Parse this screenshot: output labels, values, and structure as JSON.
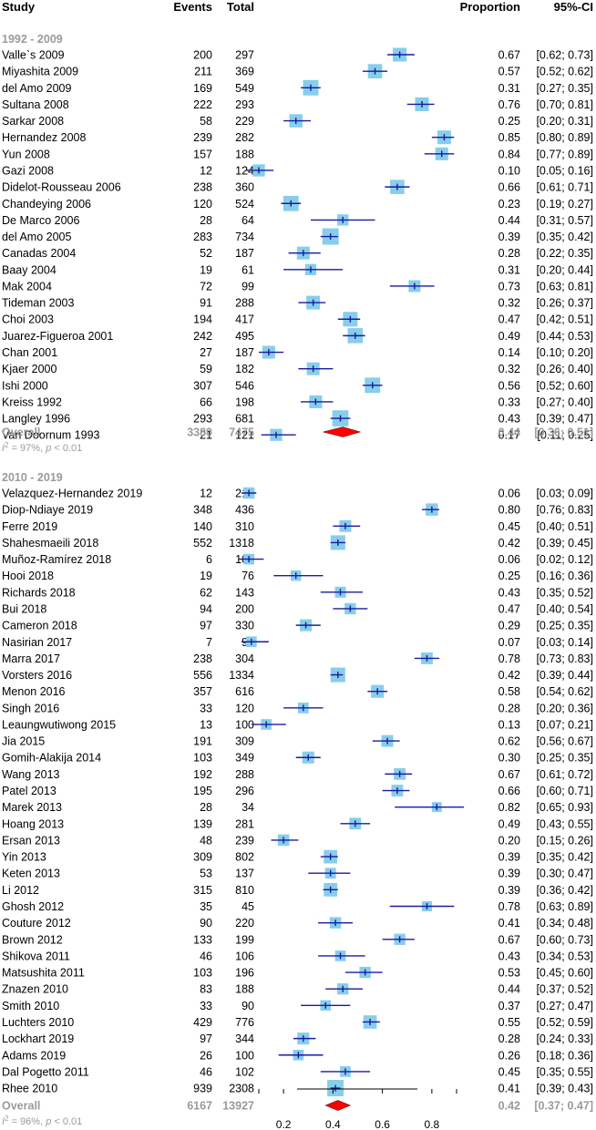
{
  "header": {
    "study": "Study",
    "events": "Events",
    "total": "Total",
    "proportion": "Proportion",
    "ci": "95%-CI"
  },
  "chart_data": {
    "type": "forest",
    "x_axis": {
      "ticks": [
        "0.2",
        "0.4",
        "0.6",
        "0.8"
      ],
      "min": 0.1,
      "max": 0.9
    },
    "colors": {
      "box": "#87ceeb",
      "line": "#1a1aa0",
      "diamond": "#ff0000",
      "muted": "#9a9a9a"
    },
    "groups": [
      {
        "title": "1992 - 2009",
        "studies": [
          {
            "name": "Valle`s 2009",
            "events": "200",
            "total": "297",
            "prop": 0.67,
            "lo": 0.62,
            "hi": 0.73,
            "ci": "[0.62; 0.73]"
          },
          {
            "name": "Miyashita 2009",
            "events": "211",
            "total": "369",
            "prop": 0.57,
            "lo": 0.52,
            "hi": 0.62,
            "ci": "[0.52; 0.62]"
          },
          {
            "name": "del Amo 2009",
            "events": "169",
            "total": "549",
            "prop": 0.31,
            "lo": 0.27,
            "hi": 0.35,
            "ci": "[0.27; 0.35]"
          },
          {
            "name": "Sultana 2008",
            "events": "222",
            "total": "293",
            "prop": 0.76,
            "lo": 0.7,
            "hi": 0.81,
            "ci": "[0.70; 0.81]"
          },
          {
            "name": "Sarkar 2008",
            "events": "58",
            "total": "229",
            "prop": 0.25,
            "lo": 0.2,
            "hi": 0.31,
            "ci": "[0.20; 0.31]"
          },
          {
            "name": "Hernandez 2008",
            "events": "239",
            "total": "282",
            "prop": 0.85,
            "lo": 0.8,
            "hi": 0.89,
            "ci": "[0.80; 0.89]"
          },
          {
            "name": "Yun 2008",
            "events": "157",
            "total": "188",
            "prop": 0.84,
            "lo": 0.77,
            "hi": 0.89,
            "ci": "[0.77; 0.89]"
          },
          {
            "name": "Gazi 2008",
            "events": "12",
            "total": "124",
            "prop": 0.1,
            "lo": 0.05,
            "hi": 0.16,
            "ci": "[0.05; 0.16]"
          },
          {
            "name": "Didelot-Rousseau 2006",
            "events": "238",
            "total": "360",
            "prop": 0.66,
            "lo": 0.61,
            "hi": 0.71,
            "ci": "[0.61; 0.71]"
          },
          {
            "name": "Chandeying 2006",
            "events": "120",
            "total": "524",
            "prop": 0.23,
            "lo": 0.19,
            "hi": 0.27,
            "ci": "[0.19; 0.27]"
          },
          {
            "name": "De Marco 2006",
            "events": "28",
            "total": "64",
            "prop": 0.44,
            "lo": 0.31,
            "hi": 0.57,
            "ci": "[0.31; 0.57]"
          },
          {
            "name": "del Amo 2005",
            "events": "283",
            "total": "734",
            "prop": 0.39,
            "lo": 0.35,
            "hi": 0.42,
            "ci": "[0.35; 0.42]"
          },
          {
            "name": "Canadas 2004",
            "events": "52",
            "total": "187",
            "prop": 0.28,
            "lo": 0.22,
            "hi": 0.35,
            "ci": "[0.22; 0.35]"
          },
          {
            "name": "Baay 2004",
            "events": "19",
            "total": "61",
            "prop": 0.31,
            "lo": 0.2,
            "hi": 0.44,
            "ci": "[0.20; 0.44]"
          },
          {
            "name": "Mak 2004",
            "events": "72",
            "total": "99",
            "prop": 0.73,
            "lo": 0.63,
            "hi": 0.81,
            "ci": "[0.63; 0.81]"
          },
          {
            "name": "Tideman 2003",
            "events": "91",
            "total": "288",
            "prop": 0.32,
            "lo": 0.26,
            "hi": 0.37,
            "ci": "[0.26; 0.37]"
          },
          {
            "name": "Choi 2003",
            "events": "194",
            "total": "417",
            "prop": 0.47,
            "lo": 0.42,
            "hi": 0.51,
            "ci": "[0.42; 0.51]"
          },
          {
            "name": "Juarez-Figueroa 2001",
            "events": "242",
            "total": "495",
            "prop": 0.49,
            "lo": 0.44,
            "hi": 0.53,
            "ci": "[0.44; 0.53]"
          },
          {
            "name": "Chan 2001",
            "events": "27",
            "total": "187",
            "prop": 0.14,
            "lo": 0.1,
            "hi": 0.2,
            "ci": "[0.10; 0.20]"
          },
          {
            "name": "Kjaer 2000",
            "events": "59",
            "total": "182",
            "prop": 0.32,
            "lo": 0.26,
            "hi": 0.4,
            "ci": "[0.26; 0.40]"
          },
          {
            "name": "Ishi 2000",
            "events": "307",
            "total": "546",
            "prop": 0.56,
            "lo": 0.52,
            "hi": 0.6,
            "ci": "[0.52; 0.60]"
          },
          {
            "name": "Kreiss 1992",
            "events": "66",
            "total": "198",
            "prop": 0.33,
            "lo": 0.27,
            "hi": 0.4,
            "ci": "[0.27; 0.40]"
          },
          {
            "name": "Langley 1996",
            "events": "293",
            "total": "681",
            "prop": 0.43,
            "lo": 0.39,
            "hi": 0.47,
            "ci": "[0.39; 0.47]"
          },
          {
            "name": "Van Doornum 1993",
            "events": "21",
            "total": "121",
            "prop": 0.17,
            "lo": 0.11,
            "hi": 0.25,
            "ci": "[0.11; 0.25]"
          }
        ],
        "overall": {
          "label": "Overall",
          "events": "3380",
          "total": "7475",
          "prop": 0.44,
          "lo": 0.36,
          "hi": 0.51,
          "prop_text": "0.44",
          "ci": "[0.36; 0.51]"
        },
        "heterogeneity": {
          "i_symbol": "I",
          "sup": "2",
          "rest": " = 97%, ",
          "p_symbol": "p",
          "p_rest": " < 0.01"
        }
      },
      {
        "title": "2010 - 2019",
        "studies": [
          {
            "name": "Velazquez-Hernandez 2019",
            "events": "12",
            "total": "217",
            "prop": 0.06,
            "lo": 0.03,
            "hi": 0.09,
            "ci": "[0.03; 0.09]"
          },
          {
            "name": "Diop-Ndiaye 2019",
            "events": "348",
            "total": "436",
            "prop": 0.8,
            "lo": 0.76,
            "hi": 0.83,
            "ci": "[0.76; 0.83]"
          },
          {
            "name": "Ferre 2019",
            "events": "140",
            "total": "310",
            "prop": 0.45,
            "lo": 0.4,
            "hi": 0.51,
            "ci": "[0.40; 0.51]"
          },
          {
            "name": "Shahesmaeili 2018",
            "events": "552",
            "total": "1318",
            "prop": 0.42,
            "lo": 0.39,
            "hi": 0.45,
            "ci": "[0.39; 0.45]"
          },
          {
            "name": "Muñoz-Ramírez 2018",
            "events": "6",
            "total": "105",
            "prop": 0.06,
            "lo": 0.02,
            "hi": 0.12,
            "ci": "[0.02; 0.12]"
          },
          {
            "name": "Hooi 2018",
            "events": "19",
            "total": "76",
            "prop": 0.25,
            "lo": 0.16,
            "hi": 0.36,
            "ci": "[0.16; 0.36]"
          },
          {
            "name": "Richards 2018",
            "events": "62",
            "total": "143",
            "prop": 0.43,
            "lo": 0.35,
            "hi": 0.52,
            "ci": "[0.35; 0.52]"
          },
          {
            "name": "Bui 2018",
            "events": "94",
            "total": "200",
            "prop": 0.47,
            "lo": 0.4,
            "hi": 0.54,
            "ci": "[0.40; 0.54]"
          },
          {
            "name": "Cameron 2018",
            "events": "97",
            "total": "330",
            "prop": 0.29,
            "lo": 0.25,
            "hi": 0.35,
            "ci": "[0.25; 0.35]"
          },
          {
            "name": "Nasirian 2017",
            "events": "7",
            "total": "99",
            "prop": 0.07,
            "lo": 0.03,
            "hi": 0.14,
            "ci": "[0.03; 0.14]"
          },
          {
            "name": "Marra 2017",
            "events": "238",
            "total": "304",
            "prop": 0.78,
            "lo": 0.73,
            "hi": 0.83,
            "ci": "[0.73; 0.83]"
          },
          {
            "name": "Vorsters 2016",
            "events": "556",
            "total": "1334",
            "prop": 0.42,
            "lo": 0.39,
            "hi": 0.44,
            "ci": "[0.39; 0.44]"
          },
          {
            "name": "Menon 2016",
            "events": "357",
            "total": "616",
            "prop": 0.58,
            "lo": 0.54,
            "hi": 0.62,
            "ci": "[0.54; 0.62]"
          },
          {
            "name": "Singh 2016",
            "events": "33",
            "total": "120",
            "prop": 0.28,
            "lo": 0.2,
            "hi": 0.36,
            "ci": "[0.20; 0.36]"
          },
          {
            "name": "Leaungwutiwong 2015",
            "events": "13",
            "total": "100",
            "prop": 0.13,
            "lo": 0.07,
            "hi": 0.21,
            "ci": "[0.07; 0.21]"
          },
          {
            "name": "Jia 2015",
            "events": "191",
            "total": "309",
            "prop": 0.62,
            "lo": 0.56,
            "hi": 0.67,
            "ci": "[0.56; 0.67]"
          },
          {
            "name": "Gomih-Alakija 2014",
            "events": "103",
            "total": "349",
            "prop": 0.3,
            "lo": 0.25,
            "hi": 0.35,
            "ci": "[0.25; 0.35]"
          },
          {
            "name": "Wang 2013",
            "events": "192",
            "total": "288",
            "prop": 0.67,
            "lo": 0.61,
            "hi": 0.72,
            "ci": "[0.61; 0.72]"
          },
          {
            "name": "Patel 2013",
            "events": "195",
            "total": "296",
            "prop": 0.66,
            "lo": 0.6,
            "hi": 0.71,
            "ci": "[0.60; 0.71]"
          },
          {
            "name": "Marek 2013",
            "events": "28",
            "total": "34",
            "prop": 0.82,
            "lo": 0.65,
            "hi": 0.93,
            "ci": "[0.65; 0.93]"
          },
          {
            "name": "Hoang 2013",
            "events": "139",
            "total": "281",
            "prop": 0.49,
            "lo": 0.43,
            "hi": 0.55,
            "ci": "[0.43; 0.55]"
          },
          {
            "name": "Ersan 2013",
            "events": "48",
            "total": "239",
            "prop": 0.2,
            "lo": 0.15,
            "hi": 0.26,
            "ci": "[0.15; 0.26]"
          },
          {
            "name": "Yin 2013",
            "events": "309",
            "total": "802",
            "prop": 0.39,
            "lo": 0.35,
            "hi": 0.42,
            "ci": "[0.35; 0.42]"
          },
          {
            "name": "Keten 2013",
            "events": "53",
            "total": "137",
            "prop": 0.39,
            "lo": 0.3,
            "hi": 0.47,
            "ci": "[0.30; 0.47]"
          },
          {
            "name": "Li 2012",
            "events": "315",
            "total": "810",
            "prop": 0.39,
            "lo": 0.36,
            "hi": 0.42,
            "ci": "[0.36; 0.42]"
          },
          {
            "name": "Ghosh 2012",
            "events": "35",
            "total": "45",
            "prop": 0.78,
            "lo": 0.63,
            "hi": 0.89,
            "ci": "[0.63; 0.89]"
          },
          {
            "name": "Couture 2012",
            "events": "90",
            "total": "220",
            "prop": 0.41,
            "lo": 0.34,
            "hi": 0.48,
            "ci": "[0.34; 0.48]"
          },
          {
            "name": "Brown 2012",
            "events": "133",
            "total": "199",
            "prop": 0.67,
            "lo": 0.6,
            "hi": 0.73,
            "ci": "[0.60; 0.73]"
          },
          {
            "name": "Shikova 2011",
            "events": "46",
            "total": "106",
            "prop": 0.43,
            "lo": 0.34,
            "hi": 0.53,
            "ci": "[0.34; 0.53]"
          },
          {
            "name": "Matsushita 2011",
            "events": "103",
            "total": "196",
            "prop": 0.53,
            "lo": 0.45,
            "hi": 0.6,
            "ci": "[0.45; 0.60]"
          },
          {
            "name": "Znazen 2010",
            "events": "83",
            "total": "188",
            "prop": 0.44,
            "lo": 0.37,
            "hi": 0.52,
            "ci": "[0.37; 0.52]"
          },
          {
            "name": "Smith 2010",
            "events": "33",
            "total": "90",
            "prop": 0.37,
            "lo": 0.27,
            "hi": 0.47,
            "ci": "[0.27; 0.47]"
          },
          {
            "name": "Luchters 2010",
            "events": "429",
            "total": "776",
            "prop": 0.55,
            "lo": 0.52,
            "hi": 0.59,
            "ci": "[0.52; 0.59]"
          },
          {
            "name": "Lockhart 2019",
            "events": "97",
            "total": "344",
            "prop": 0.28,
            "lo": 0.24,
            "hi": 0.33,
            "ci": "[0.24; 0.33]"
          },
          {
            "name": "Adams 2019",
            "events": "26",
            "total": "100",
            "prop": 0.26,
            "lo": 0.18,
            "hi": 0.36,
            "ci": "[0.18; 0.36]"
          },
          {
            "name": "Dal Pogetto 2011",
            "events": "46",
            "total": "102",
            "prop": 0.45,
            "lo": 0.35,
            "hi": 0.55,
            "ci": "[0.35; 0.55]"
          },
          {
            "name": "Rhee 2010",
            "events": "939",
            "total": "2308",
            "prop": 0.41,
            "lo": 0.39,
            "hi": 0.43,
            "ci": "[0.39; 0.43]"
          }
        ],
        "overall": {
          "label": "Overall",
          "events": "6167",
          "total": "13927",
          "prop": 0.42,
          "lo": 0.37,
          "hi": 0.47,
          "prop_text": "0.42",
          "ci": "[0.37; 0.47]"
        },
        "heterogeneity": {
          "i_symbol": "I",
          "sup": "2",
          "rest": " = 96%, ",
          "p_symbol": "p",
          "p_rest": " < 0.01"
        }
      }
    ]
  }
}
